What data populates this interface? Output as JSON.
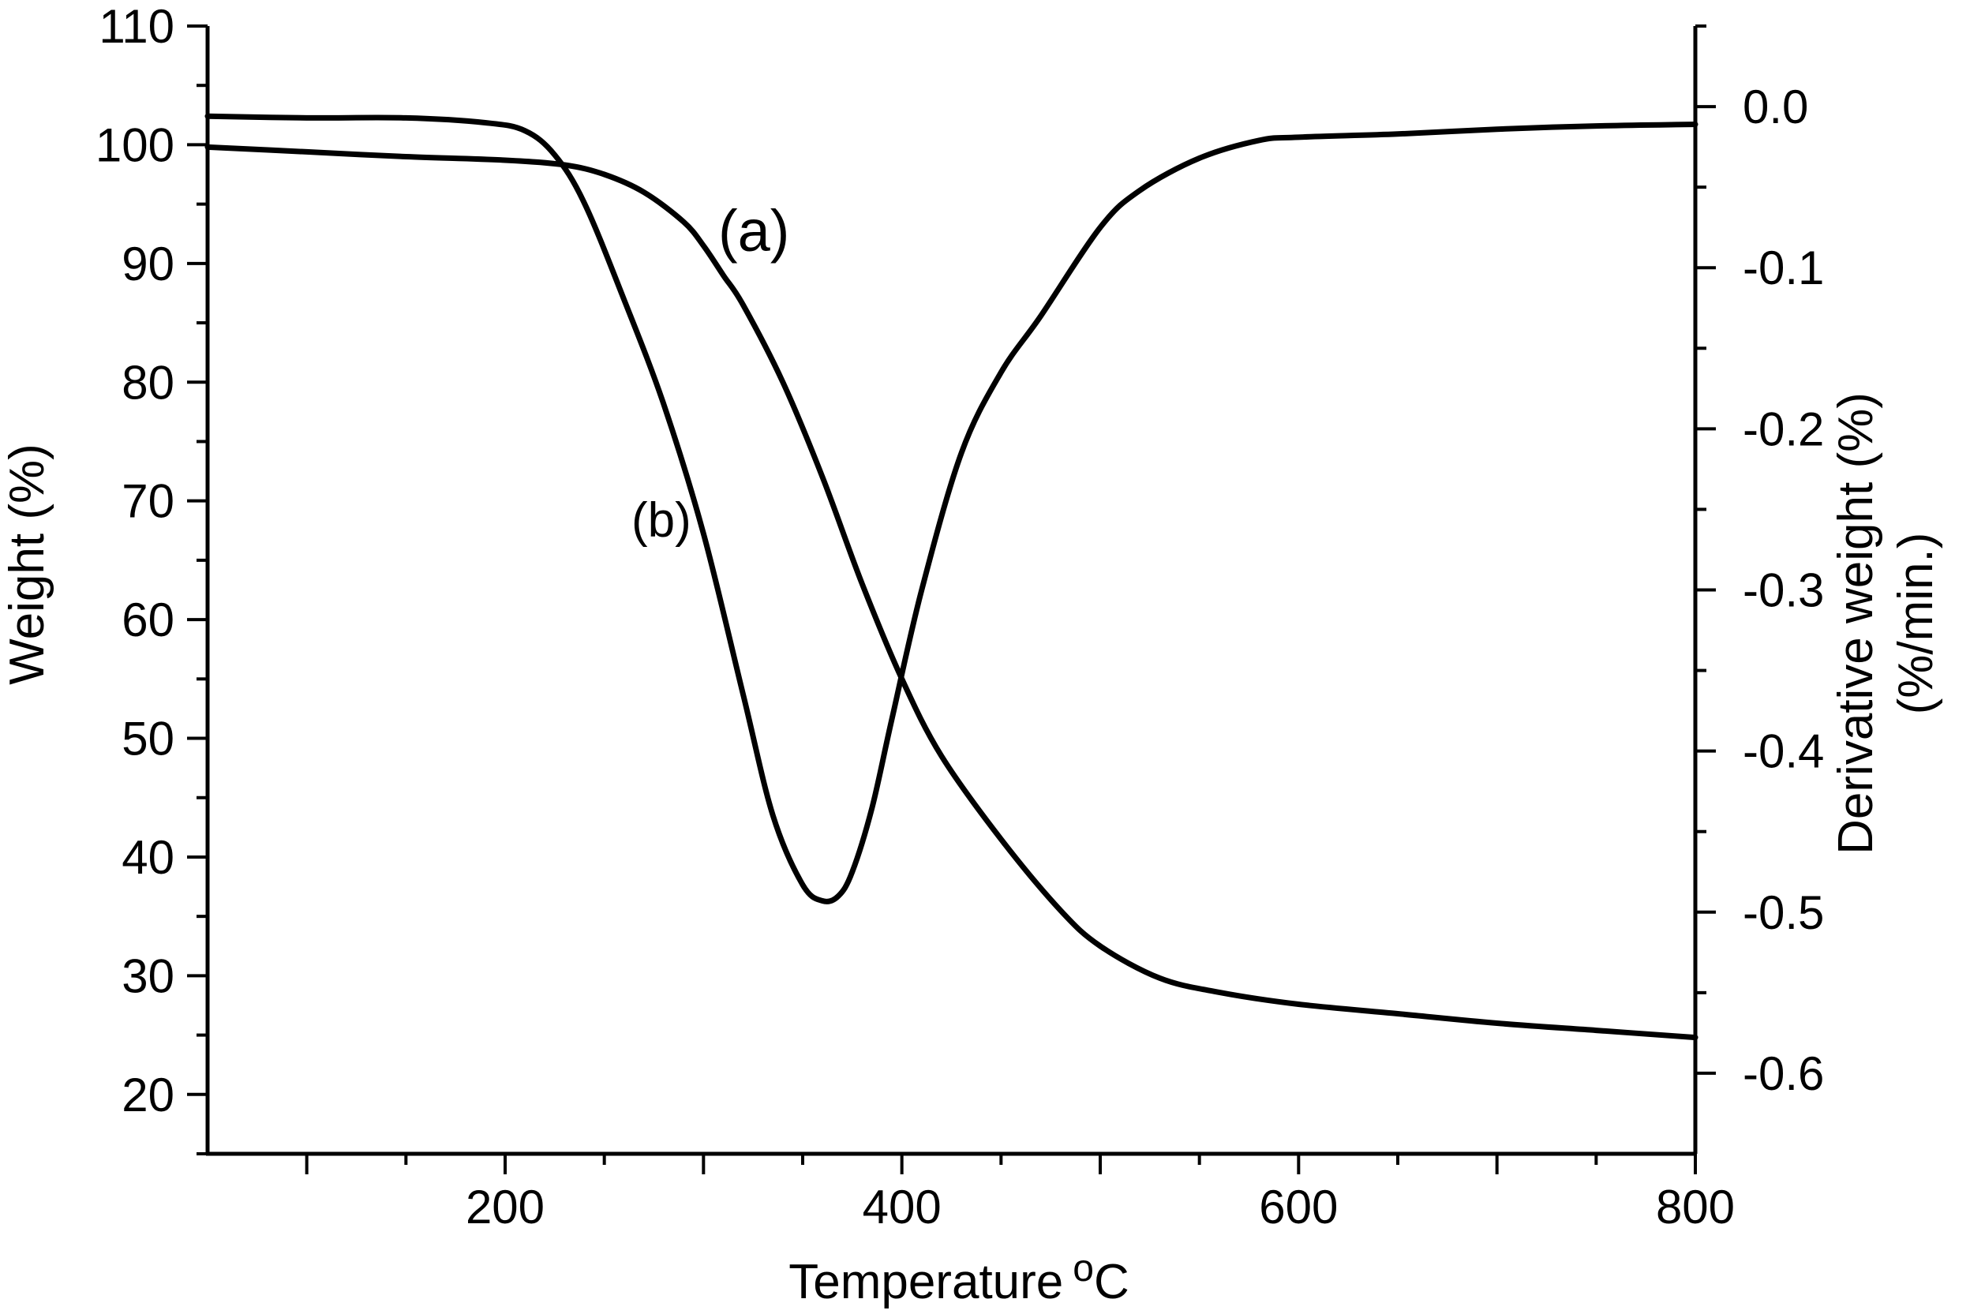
{
  "chart_data": {
    "type": "line",
    "xlabel": "Temperature",
    "xlabel_unit_sup": "o",
    "xlabel_unit": "C",
    "ylabel_left": "Weight (%)",
    "ylabel_right_line1": "Derivative weight (%)",
    "ylabel_right_line2": "(%/min.)",
    "xlim": [
      50,
      800
    ],
    "ylim_left": [
      15,
      110
    ],
    "ylim_right": [
      -0.65,
      0.05
    ],
    "x_ticks": [
      200,
      400,
      600,
      800
    ],
    "y_left_ticks": [
      20,
      30,
      40,
      50,
      60,
      70,
      80,
      90,
      100,
      110
    ],
    "y_right_ticks": [
      0.0,
      -0.1,
      -0.2,
      -0.3,
      -0.4,
      -0.5,
      -0.6
    ],
    "y_right_tick_labels": [
      "0.0",
      "-0.1",
      "-0.2",
      "-0.3",
      "-0.4",
      "-0.5",
      "-0.6"
    ],
    "series": [
      {
        "name": "(a)",
        "axis": "left",
        "x": [
          50,
          100,
          150,
          200,
          230,
          250,
          270,
          290,
          300,
          310,
          320,
          340,
          360,
          380,
          400,
          420,
          450,
          480,
          500,
          530,
          560,
          600,
          650,
          700,
          750,
          800
        ],
        "y": [
          99.8,
          99.4,
          99.0,
          98.7,
          98.3,
          97.5,
          96.0,
          93.5,
          91.5,
          89.0,
          86.5,
          80.0,
          72.0,
          63.0,
          55.0,
          48.5,
          41.5,
          35.5,
          32.5,
          29.8,
          28.6,
          27.6,
          26.8,
          26.0,
          25.4,
          24.8
        ]
      },
      {
        "name": "(b)",
        "axis": "right",
        "x": [
          50,
          100,
          150,
          190,
          210,
          225,
          240,
          260,
          280,
          300,
          320,
          335,
          350,
          360,
          368,
          375,
          385,
          395,
          410,
          430,
          450,
          470,
          500,
          520,
          550,
          580,
          600,
          650,
          700,
          750,
          800
        ],
        "y": [
          -0.006,
          -0.007,
          -0.007,
          -0.01,
          -0.015,
          -0.03,
          -0.06,
          -0.12,
          -0.185,
          -0.265,
          -0.365,
          -0.44,
          -0.483,
          -0.493,
          -0.49,
          -0.475,
          -0.435,
          -0.38,
          -0.3,
          -0.215,
          -0.165,
          -0.13,
          -0.075,
          -0.052,
          -0.032,
          -0.021,
          -0.019,
          -0.017,
          -0.014,
          -0.012,
          -0.011
        ]
      }
    ],
    "annotations": [
      "(a)",
      "(b)"
    ],
    "grid": false,
    "legend": "none"
  }
}
